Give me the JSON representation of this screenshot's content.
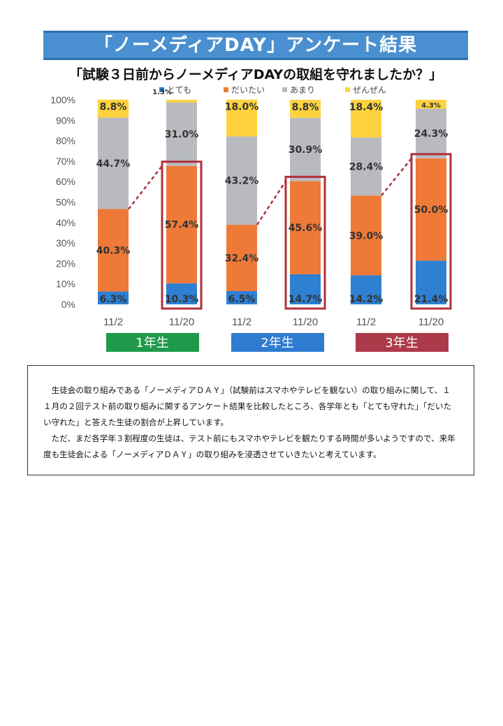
{
  "header": {
    "title": "「ノーメディアDAY」アンケート結果",
    "subtitle": "「試験３日前からノーメディアDAYの取組を守れましたか？」"
  },
  "colors": {
    "title_bg": "#4a90d0",
    "series": [
      "#2f7fd2",
      "#ef7a37",
      "#b9bac0",
      "#fdd23e"
    ],
    "highlight": "#b0303c",
    "grade1": "#1f9a4b",
    "grade2": "#2f7bd0",
    "grade3": "#ac3a48"
  },
  "chart_data": {
    "type": "bar",
    "stacked": true,
    "ylim": [
      0,
      100
    ],
    "yticks": [
      "0%",
      "10%",
      "20%",
      "30%",
      "40%",
      "50%",
      "60%",
      "70%",
      "80%",
      "90%",
      "100%"
    ],
    "categories": [
      "11/2",
      "11/20",
      "11/2",
      "11/20",
      "11/2",
      "11/20"
    ],
    "series": [
      {
        "name": "とても",
        "values": [
          6.3,
          10.3,
          6.5,
          14.7,
          14.2,
          21.4
        ]
      },
      {
        "name": "だいたい",
        "values": [
          40.3,
          57.4,
          32.4,
          45.6,
          39.0,
          50.0
        ]
      },
      {
        "name": "あまり",
        "values": [
          44.7,
          31.0,
          43.2,
          30.9,
          28.4,
          24.3
        ]
      },
      {
        "name": "ぜんぜん",
        "values": [
          8.8,
          1.3,
          18.0,
          8.8,
          18.4,
          4.3
        ]
      }
    ],
    "data_labels": [
      [
        "6.3%",
        "10.3%",
        "6.5%",
        "14.7%",
        "14.2%",
        "21.4%"
      ],
      [
        "40.3%",
        "57.4%",
        "32.4%",
        "45.6%",
        "39.0%",
        "50.0%"
      ],
      [
        "44.7%",
        "31.0%",
        "43.2%",
        "30.9%",
        "28.4%",
        "24.3%"
      ],
      [
        "8.8%",
        "1.3%",
        "18.0%",
        "8.8%",
        "18.4%",
        "4.3%"
      ]
    ],
    "groups": [
      "1年生",
      "2年生",
      "3年生"
    ],
    "legend_position": "top"
  },
  "note": {
    "paragraph1": "生徒会の取り組みである「ノーメディアＤＡＹ」（試験前はスマホやテレビを観ない）の取り組みに関して、１１月の２回テスト前の取り組みに関するアンケート結果を比較したところ、各学年とも「とても守れた」「だいたい守れた」と答えた生徒の割合が上昇しています。",
    "paragraph2": "ただ、まだ各学年３割程度の生徒は、テスト前にもスマホやテレビを観たりする時間が多いようですので、来年度も生徒会による「ノーメディアＤＡＹ」の取り組みを浸透させていきたいと考えています。"
  }
}
